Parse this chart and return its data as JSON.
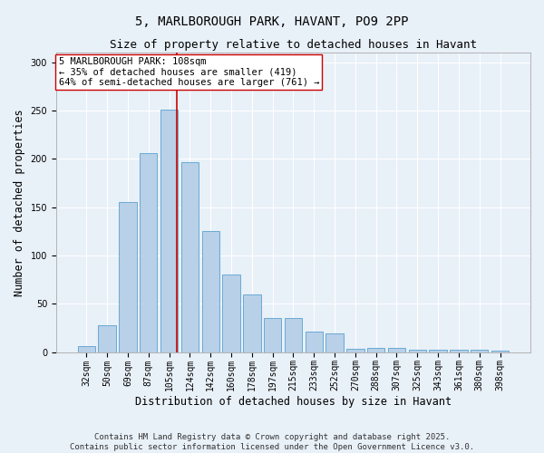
{
  "title_line1": "5, MARLBOROUGH PARK, HAVANT, PO9 2PP",
  "title_line2": "Size of property relative to detached houses in Havant",
  "xlabel": "Distribution of detached houses by size in Havant",
  "ylabel": "Number of detached properties",
  "categories": [
    "32sqm",
    "50sqm",
    "69sqm",
    "87sqm",
    "105sqm",
    "124sqm",
    "142sqm",
    "160sqm",
    "178sqm",
    "197sqm",
    "215sqm",
    "233sqm",
    "252sqm",
    "270sqm",
    "288sqm",
    "307sqm",
    "325sqm",
    "343sqm",
    "361sqm",
    "380sqm",
    "398sqm"
  ],
  "values": [
    6,
    28,
    155,
    206,
    251,
    197,
    125,
    80,
    60,
    35,
    35,
    21,
    19,
    3,
    4,
    4,
    2,
    2,
    2,
    2,
    1
  ],
  "bar_color": "#b8d0e8",
  "bar_edge_color": "#6aaad4",
  "red_line_x": 4.35,
  "red_line_color": "#cc0000",
  "annotation_text": "5 MARLBOROUGH PARK: 108sqm\n← 35% of detached houses are smaller (419)\n64% of semi-detached houses are larger (761) →",
  "annotation_box_color": "#ffffff",
  "annotation_box_edge": "#cc0000",
  "ylim": [
    0,
    310
  ],
  "yticks": [
    0,
    50,
    100,
    150,
    200,
    250,
    300
  ],
  "background_color": "#e8f0f8",
  "plot_bg_color": "#e8f0f8",
  "footer_line1": "Contains HM Land Registry data © Crown copyright and database right 2025.",
  "footer_line2": "Contains public sector information licensed under the Open Government Licence v3.0.",
  "title_fontsize": 10,
  "subtitle_fontsize": 9,
  "axis_label_fontsize": 8.5,
  "tick_fontsize": 7,
  "annotation_fontsize": 7.5,
  "footer_fontsize": 6.5
}
